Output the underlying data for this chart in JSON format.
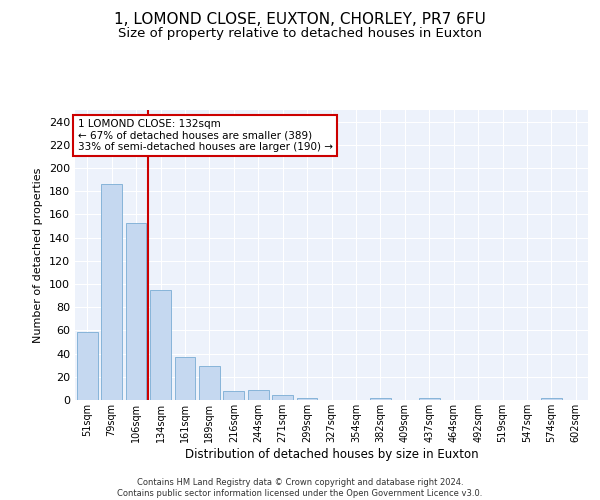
{
  "title1": "1, LOMOND CLOSE, EUXTON, CHORLEY, PR7 6FU",
  "title2": "Size of property relative to detached houses in Euxton",
  "xlabel": "Distribution of detached houses by size in Euxton",
  "ylabel": "Number of detached properties",
  "categories": [
    "51sqm",
    "79sqm",
    "106sqm",
    "134sqm",
    "161sqm",
    "189sqm",
    "216sqm",
    "244sqm",
    "271sqm",
    "299sqm",
    "327sqm",
    "354sqm",
    "382sqm",
    "409sqm",
    "437sqm",
    "464sqm",
    "492sqm",
    "519sqm",
    "547sqm",
    "574sqm",
    "602sqm"
  ],
  "values": [
    59,
    186,
    153,
    95,
    37,
    29,
    8,
    9,
    4,
    2,
    0,
    0,
    2,
    0,
    2,
    0,
    0,
    0,
    0,
    2,
    0
  ],
  "bar_color": "#c5d8f0",
  "bar_edge_color": "#7aadd4",
  "vline_color": "#cc0000",
  "annotation_text": "1 LOMOND CLOSE: 132sqm\n← 67% of detached houses are smaller (389)\n33% of semi-detached houses are larger (190) →",
  "annotation_box_color": "#ffffff",
  "annotation_box_edge": "#cc0000",
  "ylim": [
    0,
    250
  ],
  "yticks": [
    0,
    20,
    40,
    60,
    80,
    100,
    120,
    140,
    160,
    180,
    200,
    220,
    240
  ],
  "footer": "Contains HM Land Registry data © Crown copyright and database right 2024.\nContains public sector information licensed under the Open Government Licence v3.0.",
  "bg_color": "#edf2fb",
  "grid_color": "#ffffff",
  "title1_fontsize": 11,
  "title2_fontsize": 9.5
}
